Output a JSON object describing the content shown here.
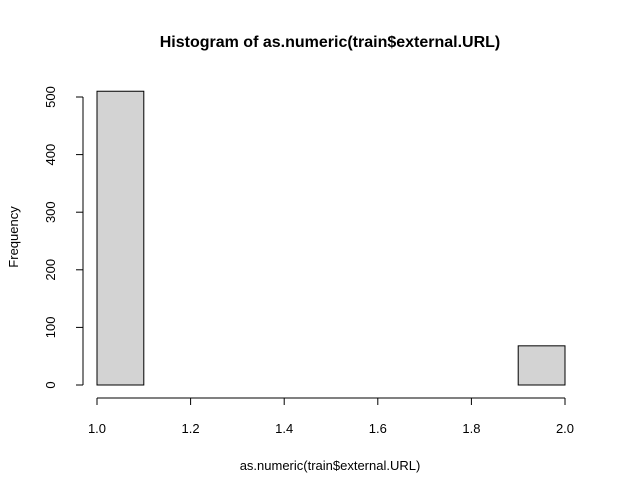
{
  "chart_data": {
    "type": "bar",
    "title": "Histogram of as.numeric(train$external.URL)",
    "xlabel": "as.numeric(train$external.URL)",
    "ylabel": "Frequency",
    "bins": [
      {
        "from": 1.0,
        "to": 1.1,
        "count": 510
      },
      {
        "from": 1.1,
        "to": 1.2,
        "count": 0
      },
      {
        "from": 1.2,
        "to": 1.3,
        "count": 0
      },
      {
        "from": 1.3,
        "to": 1.4,
        "count": 0
      },
      {
        "from": 1.4,
        "to": 1.5,
        "count": 0
      },
      {
        "from": 1.5,
        "to": 1.6,
        "count": 0
      },
      {
        "from": 1.6,
        "to": 1.7,
        "count": 0
      },
      {
        "from": 1.7,
        "to": 1.8,
        "count": 0
      },
      {
        "from": 1.8,
        "to": 1.9,
        "count": 0
      },
      {
        "from": 1.9,
        "to": 2.0,
        "count": 68
      }
    ],
    "xlim": [
      1.0,
      2.0
    ],
    "ylim": [
      0,
      500
    ],
    "x_ticks": [
      "1.0",
      "1.2",
      "1.4",
      "1.6",
      "1.8",
      "2.0"
    ],
    "y_ticks": [
      "0",
      "100",
      "200",
      "300",
      "400",
      "500"
    ],
    "bar_color": "#d3d3d3",
    "grid": false
  }
}
